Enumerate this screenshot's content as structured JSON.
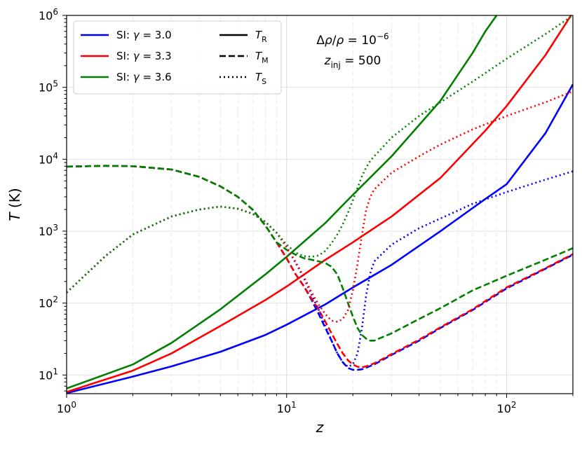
{
  "chart_data": {
    "type": "line",
    "x_scale": "log",
    "y_scale": "log",
    "xlim": [
      1,
      200
    ],
    "ylim": [
      5.5,
      1000000
    ],
    "xlabel": "z",
    "ylabel": "T (K)",
    "grid": true,
    "legend_placement": "top-left",
    "x_ticks": [
      {
        "value": 1,
        "label": "10^0"
      },
      {
        "value": 10,
        "label": "10^1"
      },
      {
        "value": 100,
        "label": "10^2"
      }
    ],
    "y_ticks": [
      {
        "value": 10,
        "label": "10^1"
      },
      {
        "value": 100,
        "label": "10^2"
      },
      {
        "value": 1000,
        "label": "10^3"
      },
      {
        "value": 10000,
        "label": "10^4"
      },
      {
        "value": 100000,
        "label": "10^5"
      },
      {
        "value": 1000000,
        "label": "10^6"
      }
    ],
    "annotations": [
      "Δρ/ρ = 10^−6",
      "z_inj = 500"
    ],
    "legend_color": [
      {
        "label": "SI: γ = 3.0",
        "color": "#0000ff"
      },
      {
        "label": "SI: γ = 3.3",
        "color": "#ff0000"
      },
      {
        "label": "SI: γ = 3.6",
        "color": "#008000"
      }
    ],
    "legend_style": [
      {
        "label": "T_R",
        "dash": "solid"
      },
      {
        "label": "T_M",
        "dash": "dashed"
      },
      {
        "label": "T_S",
        "dash": "dotted"
      }
    ],
    "series": [
      {
        "name": "SI: γ = 3.0 — T_R",
        "color": "#0000ff",
        "dash": "solid",
        "points": [
          [
            1,
            5.6
          ],
          [
            2,
            9.5
          ],
          [
            3,
            13.2
          ],
          [
            5,
            21
          ],
          [
            8,
            36
          ],
          [
            10,
            50
          ],
          [
            15,
            96
          ],
          [
            20,
            165
          ],
          [
            30,
            340
          ],
          [
            50,
            1000
          ],
          [
            80,
            2800
          ],
          [
            100,
            4500
          ],
          [
            150,
            23000
          ],
          [
            200,
            110000
          ]
        ]
      },
      {
        "name": "SI: γ = 3.3 — T_R",
        "color": "#ff0000",
        "dash": "solid",
        "points": [
          [
            1,
            5.8
          ],
          [
            2,
            11.5
          ],
          [
            3,
            20
          ],
          [
            5,
            48
          ],
          [
            8,
            110
          ],
          [
            10,
            170
          ],
          [
            15,
            400
          ],
          [
            20,
            700
          ],
          [
            30,
            1600
          ],
          [
            50,
            5500
          ],
          [
            80,
            25000
          ],
          [
            100,
            55000
          ],
          [
            150,
            280000
          ],
          [
            200,
            1100000
          ]
        ]
      },
      {
        "name": "SI: γ = 3.6 — T_R",
        "color": "#008000",
        "dash": "solid",
        "points": [
          [
            1,
            6.5
          ],
          [
            2,
            14
          ],
          [
            3,
            28
          ],
          [
            5,
            82
          ],
          [
            8,
            250
          ],
          [
            10,
            440
          ],
          [
            15,
            1300
          ],
          [
            20,
            3200
          ],
          [
            30,
            11000
          ],
          [
            50,
            65000
          ],
          [
            70,
            300000
          ],
          [
            80,
            600000
          ],
          [
            90,
            1000000
          ]
        ]
      },
      {
        "name": "SI: γ = 3.0 — T_M",
        "color": "#0000ff",
        "dash": "dashed",
        "points": [
          [
            1,
            7900
          ],
          [
            1.5,
            8100
          ],
          [
            2,
            8000
          ],
          [
            3,
            7200
          ],
          [
            4,
            5700
          ],
          [
            5,
            4200
          ],
          [
            6,
            3000
          ],
          [
            7,
            2000
          ],
          [
            8,
            1200
          ],
          [
            9,
            700
          ],
          [
            10,
            420
          ],
          [
            11,
            250
          ],
          [
            12,
            170
          ],
          [
            13,
            110
          ],
          [
            14,
            70
          ],
          [
            15,
            45
          ],
          [
            16,
            30
          ],
          [
            17,
            20
          ],
          [
            18,
            15
          ],
          [
            19,
            12.5
          ],
          [
            20,
            11.8
          ],
          [
            21,
            11.8
          ],
          [
            22,
            12
          ],
          [
            25,
            14
          ],
          [
            30,
            19
          ],
          [
            40,
            30
          ],
          [
            50,
            45
          ],
          [
            70,
            80
          ],
          [
            100,
            160
          ],
          [
            150,
            300
          ],
          [
            200,
            470
          ]
        ]
      },
      {
        "name": "SI: γ = 3.3 — T_M",
        "color": "#ff0000",
        "dash": "dashed",
        "points": [
          [
            1,
            7900
          ],
          [
            1.5,
            8100
          ],
          [
            2,
            8000
          ],
          [
            3,
            7200
          ],
          [
            4,
            5700
          ],
          [
            5,
            4200
          ],
          [
            6,
            3000
          ],
          [
            7,
            2000
          ],
          [
            8,
            1200
          ],
          [
            9,
            700
          ],
          [
            10,
            420
          ],
          [
            11,
            250
          ],
          [
            12,
            170
          ],
          [
            13,
            115
          ],
          [
            14,
            80
          ],
          [
            15,
            55
          ],
          [
            16,
            38
          ],
          [
            17,
            27
          ],
          [
            18,
            20
          ],
          [
            19,
            16
          ],
          [
            20,
            14
          ],
          [
            21,
            13
          ],
          [
            22,
            12.8
          ],
          [
            23,
            13.2
          ],
          [
            25,
            14.5
          ],
          [
            30,
            19.5
          ],
          [
            40,
            31
          ],
          [
            50,
            46
          ],
          [
            70,
            82
          ],
          [
            100,
            165
          ],
          [
            150,
            305
          ],
          [
            200,
            480
          ]
        ]
      },
      {
        "name": "SI: γ = 3.6 — T_M",
        "color": "#008000",
        "dash": "dashed",
        "points": [
          [
            1,
            7900
          ],
          [
            1.5,
            8100
          ],
          [
            2,
            8000
          ],
          [
            3,
            7200
          ],
          [
            4,
            5700
          ],
          [
            5,
            4200
          ],
          [
            6,
            3000
          ],
          [
            7,
            2000
          ],
          [
            8,
            1200
          ],
          [
            9,
            700
          ],
          [
            10,
            550
          ],
          [
            11,
            470
          ],
          [
            12,
            420
          ],
          [
            13,
            400
          ],
          [
            14,
            380
          ],
          [
            15,
            360
          ],
          [
            16,
            320
          ],
          [
            17,
            250
          ],
          [
            18,
            160
          ],
          [
            19,
            100
          ],
          [
            20,
            65
          ],
          [
            21,
            45
          ],
          [
            22,
            36
          ],
          [
            23,
            32
          ],
          [
            24,
            30
          ],
          [
            25,
            30
          ],
          [
            30,
            38
          ],
          [
            40,
            60
          ],
          [
            50,
            85
          ],
          [
            70,
            150
          ],
          [
            100,
            240
          ],
          [
            150,
            400
          ],
          [
            200,
            580
          ]
        ]
      },
      {
        "name": "SI: γ = 3.0 — T_S",
        "color": "#0000ff",
        "dash": "dotted",
        "points": [
          [
            1,
            140
          ],
          [
            1.5,
            450
          ],
          [
            2,
            900
          ],
          [
            3,
            1600
          ],
          [
            4,
            2000
          ],
          [
            5,
            2200
          ],
          [
            6,
            2050
          ],
          [
            7,
            1750
          ],
          [
            8,
            1350
          ],
          [
            9,
            950
          ],
          [
            10,
            600
          ],
          [
            11,
            360
          ],
          [
            12,
            220
          ],
          [
            13,
            130
          ],
          [
            14,
            80
          ],
          [
            15,
            48
          ],
          [
            16,
            30
          ],
          [
            17,
            20
          ],
          [
            18,
            15
          ],
          [
            19,
            13
          ],
          [
            20,
            14
          ],
          [
            21,
            20
          ],
          [
            22,
            45
          ],
          [
            23,
            130
          ],
          [
            24,
            260
          ],
          [
            25,
            380
          ],
          [
            30,
            650
          ],
          [
            40,
            1100
          ],
          [
            50,
            1500
          ],
          [
            70,
            2400
          ],
          [
            100,
            3500
          ],
          [
            150,
            5200
          ],
          [
            200,
            6800
          ]
        ]
      },
      {
        "name": "SI: γ = 3.3 — T_S",
        "color": "#ff0000",
        "dash": "dotted",
        "points": [
          [
            1,
            140
          ],
          [
            1.5,
            450
          ],
          [
            2,
            900
          ],
          [
            3,
            1600
          ],
          [
            4,
            2000
          ],
          [
            5,
            2200
          ],
          [
            6,
            2050
          ],
          [
            7,
            1750
          ],
          [
            8,
            1350
          ],
          [
            9,
            950
          ],
          [
            10,
            600
          ],
          [
            11,
            370
          ],
          [
            12,
            230
          ],
          [
            13,
            140
          ],
          [
            14,
            95
          ],
          [
            15,
            70
          ],
          [
            16,
            57
          ],
          [
            17,
            55
          ],
          [
            18,
            60
          ],
          [
            19,
            80
          ],
          [
            20,
            150
          ],
          [
            21,
            350
          ],
          [
            22,
            900
          ],
          [
            23,
            2000
          ],
          [
            24,
            3000
          ],
          [
            25,
            3800
          ],
          [
            30,
            6500
          ],
          [
            40,
            11000
          ],
          [
            50,
            16000
          ],
          [
            70,
            26000
          ],
          [
            100,
            40000
          ],
          [
            150,
            62000
          ],
          [
            200,
            88000
          ]
        ]
      },
      {
        "name": "SI: γ = 3.6 — T_S",
        "color": "#008000",
        "dash": "dotted",
        "points": [
          [
            1,
            140
          ],
          [
            1.5,
            450
          ],
          [
            2,
            900
          ],
          [
            3,
            1600
          ],
          [
            4,
            2000
          ],
          [
            5,
            2200
          ],
          [
            6,
            2050
          ],
          [
            7,
            1750
          ],
          [
            8,
            1350
          ],
          [
            9,
            950
          ],
          [
            10,
            650
          ],
          [
            11,
            500
          ],
          [
            12,
            450
          ],
          [
            13,
            440
          ],
          [
            14,
            460
          ],
          [
            15,
            530
          ],
          [
            16,
            680
          ],
          [
            17,
            900
          ],
          [
            18,
            1250
          ],
          [
            19,
            1800
          ],
          [
            20,
            2700
          ],
          [
            21,
            4000
          ],
          [
            22,
            5800
          ],
          [
            23,
            7700
          ],
          [
            24,
            9500
          ],
          [
            25,
            11000
          ],
          [
            30,
            20000
          ],
          [
            40,
            40000
          ],
          [
            50,
            62000
          ],
          [
            70,
            120000
          ],
          [
            100,
            250000
          ],
          [
            150,
            550000
          ],
          [
            200,
            1000000
          ]
        ]
      }
    ]
  }
}
